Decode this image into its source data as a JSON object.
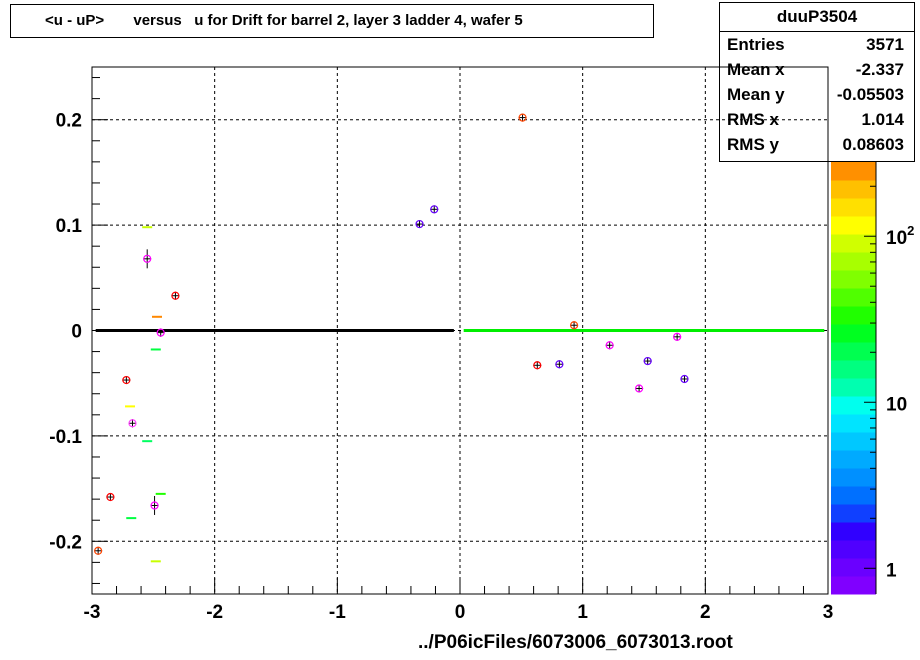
{
  "title": "<u - uP>       versus   u for Drift for barrel 2, layer 3 ladder 4, wafer 5",
  "stats": {
    "name": "duuP3504",
    "rows": [
      {
        "label": "Entries",
        "value": "3571"
      },
      {
        "label": "Mean x",
        "value": "-2.337"
      },
      {
        "label": "Mean y",
        "value": "-0.05503"
      },
      {
        "label": "RMS x",
        "value": "1.014"
      },
      {
        "label": "RMS y",
        "value": "0.08603"
      }
    ]
  },
  "footer": "../P06icFiles/6073006_6073013.root",
  "chart_data": {
    "type": "scatter",
    "title": "<u - uP>       versus   u for Drift for barrel 2, layer 3 ladder 4, wafer 5",
    "xlim": [
      -3,
      3
    ],
    "ylim": [
      -0.25,
      0.25
    ],
    "x_ticks": [
      -3,
      -2,
      -1,
      0,
      1,
      2,
      3
    ],
    "y_ticks": [
      -0.2,
      -0.1,
      0,
      0.1,
      0.2
    ],
    "x_tick_labels": [
      "-3",
      "-2",
      "-1",
      "0",
      "1",
      "2",
      "3"
    ],
    "y_tick_labels": [
      "-0.2",
      "-0.1",
      "0",
      "0.1",
      "0.2"
    ],
    "grid": true,
    "colorbar": {
      "scale": "log",
      "ticks": [
        {
          "value": 1,
          "label": "1"
        },
        {
          "value": 10,
          "label": "10"
        },
        {
          "value": 100,
          "label": "10",
          "sup": "2"
        }
      ],
      "range": [
        0.7,
        280
      ],
      "colors": [
        "#8000ff",
        "#6a00ff",
        "#5000ff",
        "#3000ff",
        "#1040ff",
        "#0070ff",
        "#0090ff",
        "#00aaff",
        "#00c8ff",
        "#00e4ff",
        "#00ffee",
        "#00ffb0",
        "#00ff80",
        "#00ff50",
        "#00ff20",
        "#20ff00",
        "#50ff00",
        "#80ff00",
        "#a8ff00",
        "#d0ff00",
        "#ffff00",
        "#ffe000",
        "#ffc000",
        "#ff9000"
      ]
    },
    "profile_points": [
      {
        "x": -2.95,
        "y": -0.209,
        "err": 0.003,
        "color": "#ff4400"
      },
      {
        "x": -2.85,
        "y": -0.158,
        "err": 0.003,
        "color": "#ff0000"
      },
      {
        "x": -2.72,
        "y": -0.047,
        "err": 0.003,
        "color": "#ff0000"
      },
      {
        "x": -2.67,
        "y": -0.088,
        "err": 0.004,
        "color": "#ff44ff"
      },
      {
        "x": -2.55,
        "y": 0.068,
        "err": 0.009,
        "color": "#ff00ff"
      },
      {
        "x": -2.49,
        "y": -0.166,
        "err": 0.009,
        "color": "#ff00ff"
      },
      {
        "x": -2.44,
        "y": -0.002,
        "err": 0.004,
        "color": "#ff00ff"
      },
      {
        "x": -2.32,
        "y": 0.033,
        "err": 0.003,
        "color": "#ff0000"
      },
      {
        "x": -0.33,
        "y": 0.101,
        "err": 0.002,
        "color": "#6600ff"
      },
      {
        "x": -0.21,
        "y": 0.115,
        "err": 0.002,
        "color": "#6600ff"
      },
      {
        "x": 0.51,
        "y": 0.202,
        "err": 0.002,
        "color": "#ff4400"
      },
      {
        "x": 0.63,
        "y": -0.033,
        "err": 0.002,
        "color": "#ff0000"
      },
      {
        "x": 0.81,
        "y": -0.032,
        "err": 0.002,
        "color": "#6600ff"
      },
      {
        "x": 0.93,
        "y": 0.005,
        "err": 0.002,
        "color": "#ff4400"
      },
      {
        "x": 1.22,
        "y": -0.014,
        "err": 0.002,
        "color": "#ff00ff"
      },
      {
        "x": 1.46,
        "y": -0.055,
        "err": 0.003,
        "color": "#ff00ff"
      },
      {
        "x": 1.53,
        "y": -0.029,
        "err": 0.002,
        "color": "#6600ff"
      },
      {
        "x": 1.77,
        "y": -0.006,
        "err": 0.002,
        "color": "#ff00ff"
      },
      {
        "x": 1.83,
        "y": -0.046,
        "err": 0.002,
        "color": "#6600ff"
      }
    ],
    "cell_marks": [
      {
        "x": -2.55,
        "y": 0.098,
        "color": "#c8ff00"
      },
      {
        "x": -2.47,
        "y": 0.013,
        "color": "#ff8800"
      },
      {
        "x": -2.48,
        "y": -0.018,
        "color": "#00ff40"
      },
      {
        "x": -2.69,
        "y": -0.072,
        "color": "#ffff00"
      },
      {
        "x": -2.55,
        "y": -0.105,
        "color": "#00ff60"
      },
      {
        "x": -2.44,
        "y": -0.155,
        "color": "#20ff00"
      },
      {
        "x": -2.68,
        "y": -0.178,
        "color": "#00ff40"
      },
      {
        "x": -2.48,
        "y": -0.219,
        "color": "#c8ff00"
      }
    ],
    "zero_lines": [
      {
        "x_from": -2.97,
        "x_to": -0.05,
        "y": 0,
        "color": "#000000"
      },
      {
        "x_from": 0.03,
        "x_to": 2.97,
        "y": 0,
        "color": "#00ee00"
      }
    ]
  }
}
